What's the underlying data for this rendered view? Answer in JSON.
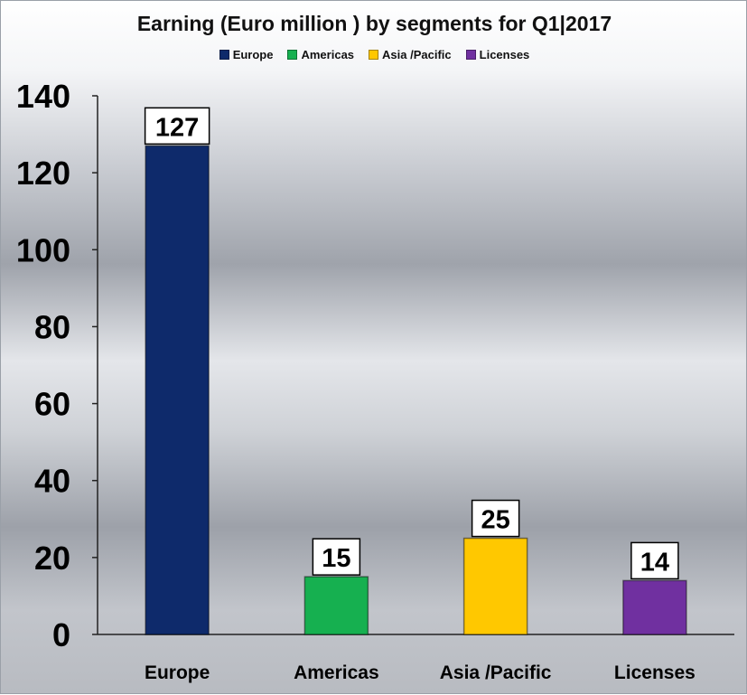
{
  "chart_data": {
    "type": "bar",
    "title": "Earning (Euro million ) by segments for Q1|2017",
    "categories": [
      "Europe",
      "Americas",
      "Asia /Pacific",
      "Licenses"
    ],
    "values": [
      127,
      15,
      25,
      14
    ],
    "colors": [
      "#0e2a6b",
      "#16b050",
      "#ffc800",
      "#7030a0"
    ],
    "legend": [
      {
        "label": "Europe",
        "color": "#0e2a6b"
      },
      {
        "label": "Americas",
        "color": "#16b050"
      },
      {
        "label": "Asia /Pacific",
        "color": "#ffc800"
      },
      {
        "label": "Licenses",
        "color": "#7030a0"
      }
    ],
    "legend_position": "top",
    "ylim": [
      0,
      140
    ],
    "yticks": [
      0,
      20,
      40,
      60,
      80,
      100,
      120,
      140
    ],
    "grid": false,
    "xlabel": "",
    "ylabel": ""
  }
}
